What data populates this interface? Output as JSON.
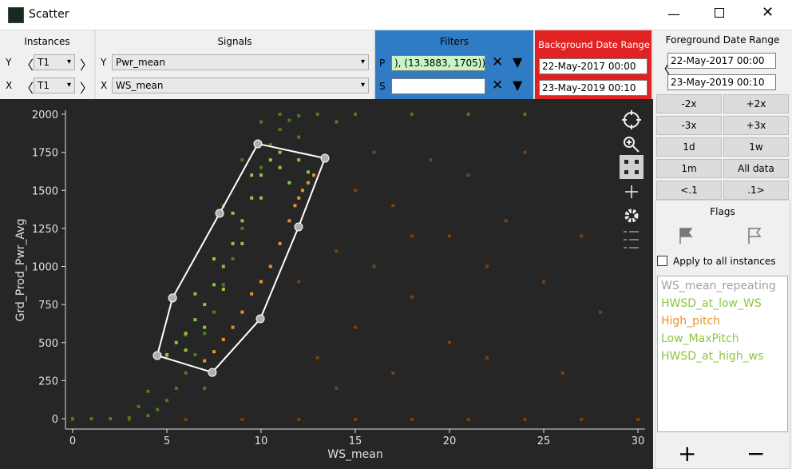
{
  "window": {
    "title": "Scatter"
  },
  "instances": {
    "title": "Instances",
    "y_label": "Y",
    "y_value": "T1",
    "x_label": "X",
    "x_value": "T1"
  },
  "signals": {
    "title": "Signals",
    "y_label": "Y",
    "y_value": "Pwr_mean",
    "x_label": "X",
    "x_value": "WS_mean"
  },
  "filters": {
    "title": "Filters",
    "p_label": "P",
    "p_value": "), (13.3883,  1705))",
    "s_label": "S"
  },
  "background_range": {
    "title": "Background Date Range",
    "start": "22-May-2017 00:00",
    "end": "23-May-2019 00:10"
  },
  "foreground_range": {
    "title": "Foreground Date Range",
    "start": "22-May-2017 00:00",
    "end": "23-May-2019 00:10"
  },
  "buttons": [
    "-2x",
    "+2x",
    "-3x",
    "+3x",
    "1d",
    "1w",
    "1m",
    "All data",
    "<.1",
    ".1>"
  ],
  "flags": {
    "title": "Flags",
    "apply_all": "Apply to all instances",
    "items": [
      {
        "label": "WS_mean_repeating",
        "color": "#a0a0a0"
      },
      {
        "label": "HWSD_at_low_WS",
        "color": "#8dc63f"
      },
      {
        "label": "High_pitch",
        "color": "#e8912a"
      },
      {
        "label": "Low_MaxPitch",
        "color": "#8dc63f"
      },
      {
        "label": "HWSD_at_high_ws",
        "color": "#8dc63f"
      }
    ]
  },
  "chart_data": {
    "type": "scatter",
    "x_label": "WS_mean",
    "y_label": "Grd_Prod_Pwr_Avg",
    "xlim": [
      -0.5,
      30.5
    ],
    "ylim": [
      -60,
      2030
    ],
    "xticks": [
      0,
      5,
      10,
      15,
      20,
      25,
      30
    ],
    "yticks": [
      0,
      250,
      500,
      750,
      1000,
      1250,
      1500,
      1750,
      2000
    ],
    "series": [
      {
        "color": "#7a4210",
        "x": [
          0,
          3,
          6,
          9,
          12,
          15,
          18,
          21,
          24,
          27,
          30,
          14,
          15,
          16,
          17,
          18,
          20,
          22,
          25,
          19,
          21,
          23,
          24,
          26,
          28,
          13,
          14,
          15,
          16,
          17,
          18,
          12,
          20,
          22,
          27
        ],
        "y": [
          -5,
          -5,
          -5,
          -5,
          -5,
          -5,
          -5,
          -5,
          -5,
          -5,
          -5,
          200,
          600,
          1000,
          1400,
          800,
          1200,
          400,
          900,
          1700,
          1600,
          1300,
          1750,
          300,
          700,
          400,
          1100,
          1500,
          1750,
          300,
          1200,
          900,
          500,
          1000,
          1200
        ]
      },
      {
        "color": "#4e7d1a",
        "x": [
          0,
          1,
          2,
          3,
          4,
          4.5,
          5,
          5.5,
          6,
          6.5,
          7,
          7.5,
          8,
          8.5,
          9,
          9.5,
          10,
          10.5,
          11,
          11.5,
          12,
          13,
          15,
          18,
          21,
          24,
          3.5,
          4,
          6,
          9,
          11,
          12,
          14,
          10,
          8,
          5,
          7
        ],
        "y": [
          0,
          0,
          0,
          5,
          20,
          60,
          120,
          200,
          300,
          420,
          560,
          700,
          880,
          1050,
          1250,
          1450,
          1650,
          1800,
          1900,
          1960,
          1990,
          2000,
          2000,
          2000,
          2000,
          2000,
          80,
          180,
          550,
          1700,
          2000,
          1850,
          1950,
          1950,
          1400,
          400,
          200
        ]
      },
      {
        "color": "#8dc63f",
        "x": [
          5,
          5.5,
          6,
          6.5,
          7,
          7.5,
          8,
          8.5,
          9,
          9.5,
          10,
          10.5,
          11,
          6,
          7,
          8,
          9,
          10,
          11,
          12,
          7.5,
          8.5,
          9.5,
          6.5,
          11.5,
          12.5
        ],
        "y": [
          420,
          500,
          560,
          650,
          750,
          880,
          1000,
          1150,
          1300,
          1450,
          1600,
          1700,
          1750,
          450,
          600,
          850,
          1150,
          1450,
          1650,
          1700,
          1050,
          1350,
          1600,
          820,
          1550,
          1620
        ]
      },
      {
        "color": "#e8912a",
        "x": [
          7,
          8,
          9,
          10,
          11,
          11.5,
          12,
          12.5,
          12.8,
          10.5,
          9.5,
          8.5,
          7.5,
          12.2,
          11.8
        ],
        "y": [
          380,
          520,
          700,
          900,
          1150,
          1300,
          1450,
          1550,
          1600,
          1000,
          820,
          600,
          440,
          1500,
          1400
        ]
      }
    ],
    "selection": {
      "color": "#ffffff",
      "x": [
        4.49,
        5.3,
        7.8,
        9.83,
        13.39,
        11.99,
        9.96,
        7.41
      ],
      "y": [
        415,
        793,
        1349,
        1806,
        1711,
        1260,
        656,
        304
      ]
    }
  }
}
